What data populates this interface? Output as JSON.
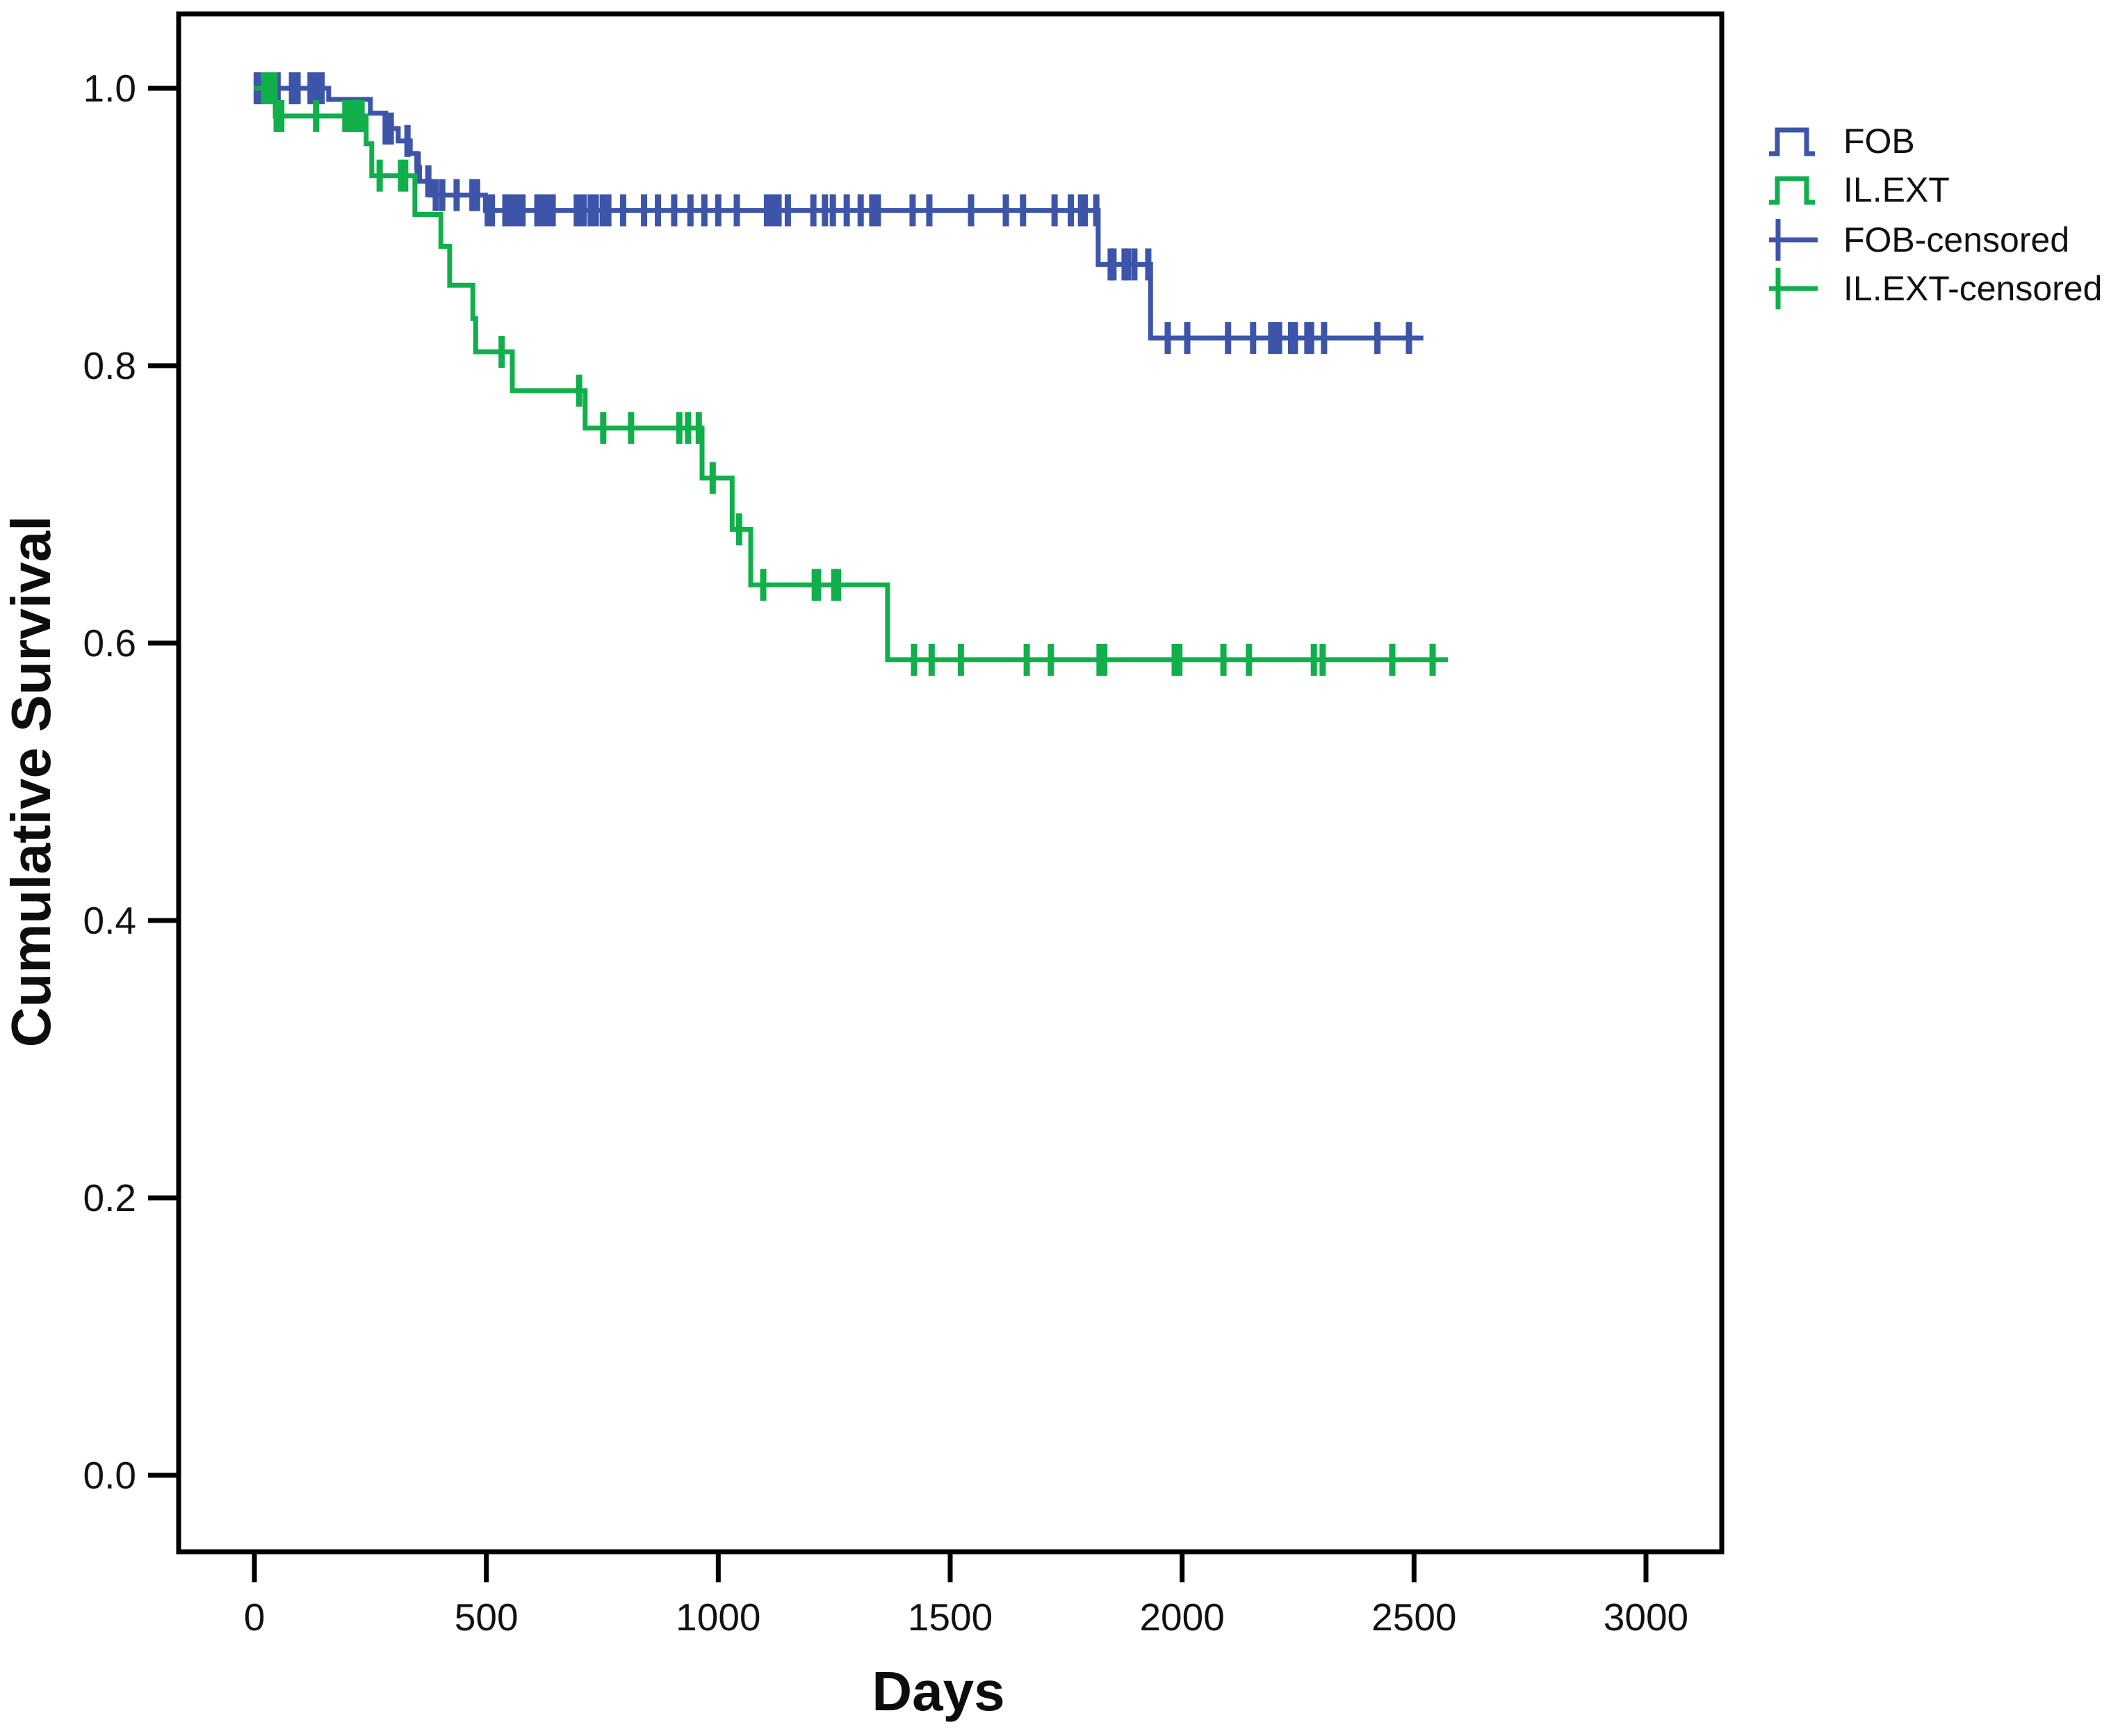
{
  "figure": {
    "background": "#ffffff",
    "axis_color": "#000000"
  },
  "legend": {
    "position": "top-right",
    "items": [
      {
        "label": "FOB",
        "color": "#3D55A9",
        "marker": "step-line"
      },
      {
        "label": "IL.EXT",
        "color": "#11AF4B",
        "marker": "step-line"
      },
      {
        "label": "FOB-censored",
        "color": "#3D55A9",
        "marker": "plus-tick"
      },
      {
        "label": "IL.EXT-censored",
        "color": "#11AF4B",
        "marker": "plus-tick"
      }
    ]
  },
  "chart_data": {
    "type": "line",
    "subtype": "kaplan_meier_step_function",
    "title": "",
    "xlabel": "Days",
    "ylabel": "Cumulative Survival",
    "xlim": [
      0,
      3000
    ],
    "ylim": [
      0.0,
      1.0
    ],
    "grid": false,
    "legend_position": "right-top",
    "x_ticks": [
      {
        "v": 0,
        "label": "0"
      },
      {
        "v": 500,
        "label": "500"
      },
      {
        "v": 1000,
        "label": "1000"
      },
      {
        "v": 1500,
        "label": "1500"
      },
      {
        "v": 2000,
        "label": "2000"
      },
      {
        "v": 2500,
        "label": "2500"
      },
      {
        "v": 3000,
        "label": "3000"
      }
    ],
    "y_ticks": [
      {
        "v": 1.0,
        "label": "1.0"
      },
      {
        "v": 0.8,
        "label": "0.8"
      },
      {
        "v": 0.6,
        "label": "0.6"
      },
      {
        "v": 0.4,
        "label": "0.4"
      },
      {
        "v": 0.2,
        "label": "0.2"
      },
      {
        "v": 0.0,
        "label": "0.0"
      }
    ],
    "series": [
      {
        "name": "FOB",
        "color": "#3D55A9",
        "start_survival": 1.0,
        "end_day": 2520,
        "steps": [
          [
            160,
            0.992
          ],
          [
            250,
            0.982
          ],
          [
            283,
            0.971
          ],
          [
            310,
            0.962
          ],
          [
            336,
            0.953
          ],
          [
            350,
            0.943
          ],
          [
            356,
            0.933
          ],
          [
            380,
            0.923
          ],
          [
            498,
            0.912
          ],
          [
            1819,
            0.873
          ],
          [
            1932,
            0.82
          ]
        ],
        "censored_days": [
          5,
          18,
          26,
          34,
          42,
          50,
          81,
          93,
          121,
          133,
          145,
          283,
          294,
          330,
          352,
          375,
          391,
          405,
          436,
          470,
          480,
          503,
          512,
          541,
          550,
          558,
          571,
          578,
          610,
          617,
          625,
          635,
          643,
          695,
          703,
          710,
          725,
          736,
          751,
          763,
          795,
          840,
          870,
          905,
          940,
          970,
          1000,
          1040,
          1105,
          1118,
          1130,
          1150,
          1205,
          1230,
          1247,
          1277,
          1307,
          1332,
          1344,
          1419,
          1455,
          1545,
          1620,
          1657,
          1725,
          1760,
          1782,
          1790,
          1815,
          1846,
          1852,
          1876,
          1883,
          1897,
          1927,
          1969,
          2011,
          2099,
          2153,
          2192,
          2200,
          2209,
          2235,
          2243,
          2270,
          2278,
          2306,
          2421,
          2489
        ]
      },
      {
        "name": "IL.EXT",
        "color": "#11AF4B",
        "start_survival": 1.0,
        "end_day": 2573,
        "steps": [
          [
            45,
            0.98
          ],
          [
            241,
            0.96
          ],
          [
            253,
            0.937
          ],
          [
            346,
            0.909
          ],
          [
            402,
            0.886
          ],
          [
            421,
            0.858
          ],
          [
            471,
            0.834
          ],
          [
            477,
            0.81
          ],
          [
            556,
            0.782
          ],
          [
            713,
            0.755
          ],
          [
            965,
            0.719
          ],
          [
            1030,
            0.682
          ],
          [
            1070,
            0.642
          ],
          [
            1365,
            0.588
          ]
        ],
        "censored_days": [
          21,
          28,
          36,
          43,
          48,
          58,
          133,
          196,
          205,
          215,
          222,
          228,
          231,
          270,
          316,
          325,
          533,
          700,
          752,
          812,
          916,
          935,
          958,
          988,
          1045,
          1097,
          1208,
          1215,
          1250,
          1258,
          1422,
          1460,
          1523,
          1665,
          1717,
          1822,
          1832,
          1984,
          1994,
          2089,
          2144,
          2284,
          2303,
          2453,
          2540
        ]
      }
    ]
  }
}
